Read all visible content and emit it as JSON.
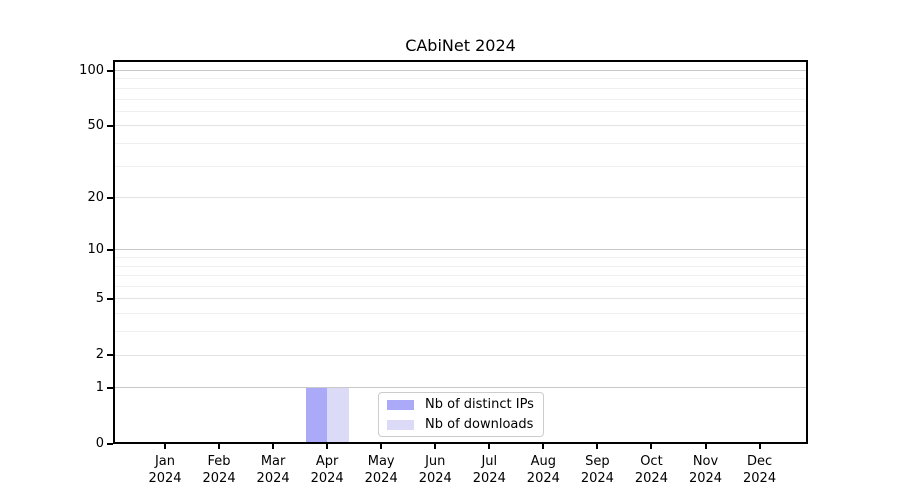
{
  "colors": {
    "distinct_ips": "#aaaaf8",
    "downloads": "#dbdbf8",
    "grid_major": "#c9c9c9",
    "grid_mid": "#e3e3e3",
    "grid_minor": "#efefef",
    "axis": "#000000"
  },
  "legend": {
    "items": [
      {
        "label": "Nb of distinct IPs",
        "color_key": "distinct_ips"
      },
      {
        "label": "Nb of downloads",
        "color_key": "downloads"
      }
    ]
  },
  "chart_data": {
    "type": "bar",
    "title": "CAbiNet 2024",
    "categories": [
      "Jan",
      "Feb",
      "Mar",
      "Apr",
      "May",
      "Jun",
      "Jul",
      "Aug",
      "Sep",
      "Oct",
      "Nov",
      "Dec"
    ],
    "year": "2024",
    "series": [
      {
        "name": "Nb of distinct IPs",
        "color_key": "distinct_ips",
        "values": [
          0,
          0,
          0,
          1,
          0,
          0,
          0,
          0,
          0,
          0,
          0,
          0
        ]
      },
      {
        "name": "Nb of downloads",
        "color_key": "downloads",
        "values": [
          0,
          0,
          0,
          1,
          0,
          0,
          0,
          0,
          0,
          0,
          0,
          0
        ]
      }
    ],
    "y_scale": "log1p",
    "ylim": [
      0,
      113
    ],
    "y_ticks": [
      0,
      1,
      2,
      5,
      10,
      20,
      50,
      100
    ],
    "y_major_grid": [
      1,
      10,
      100
    ],
    "y_mid_grid": [
      2,
      5,
      20,
      50
    ],
    "y_minor_grid": [
      3,
      4,
      6,
      7,
      8,
      9,
      30,
      40,
      60,
      70,
      80,
      90
    ],
    "grid": "horizontal",
    "legend_position": "lower center"
  }
}
